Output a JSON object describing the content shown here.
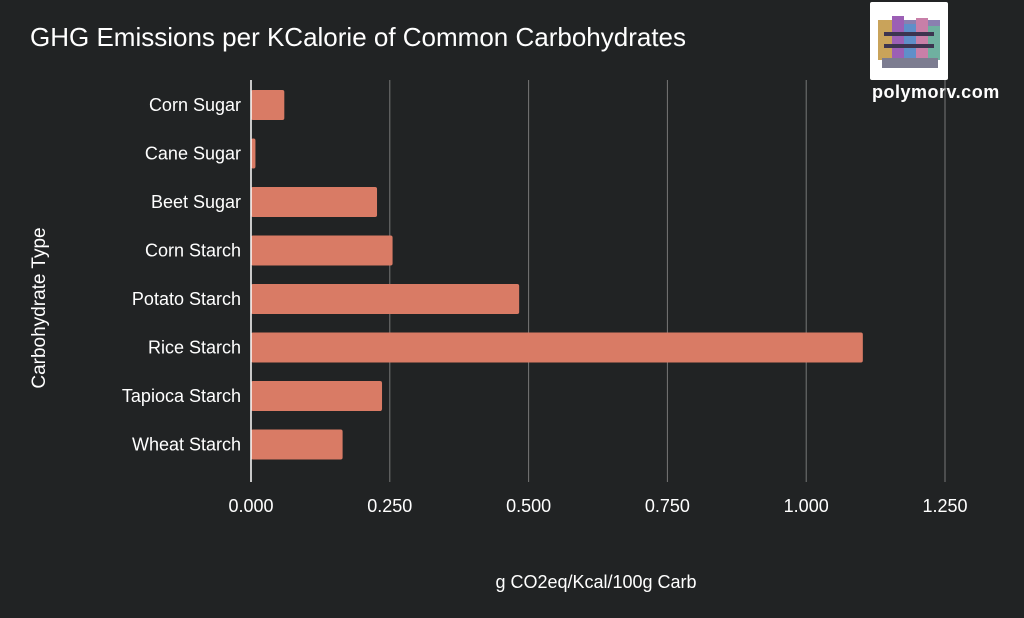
{
  "chart_data": {
    "type": "bar",
    "orientation": "horizontal",
    "title": "GHG Emissions per KCalorie of Common Carbohydrates",
    "xlabel": "g CO2eq/Kcal/100g Carb",
    "ylabel": "Carbohydrate Type",
    "categories": [
      "Corn Sugar",
      "Cane Sugar",
      "Beet Sugar",
      "Corn Starch",
      "Potato Starch",
      "Rice Starch",
      "Tapioca Starch",
      "Wheat Starch"
    ],
    "values": [
      0.06,
      0.008,
      0.227,
      0.255,
      0.483,
      1.102,
      0.236,
      0.165
    ],
    "xlim": [
      0,
      1.25
    ],
    "xticks": [
      "0.000",
      "0.250",
      "0.500",
      "0.750",
      "1.000",
      "1.250"
    ],
    "grid": true,
    "colors": {
      "bar": "#d97b65",
      "background": "#212324",
      "grid": "#777777",
      "axis": "#ffffff",
      "text": "#ffffff"
    }
  },
  "branding": {
    "site": "polymorv.com"
  }
}
